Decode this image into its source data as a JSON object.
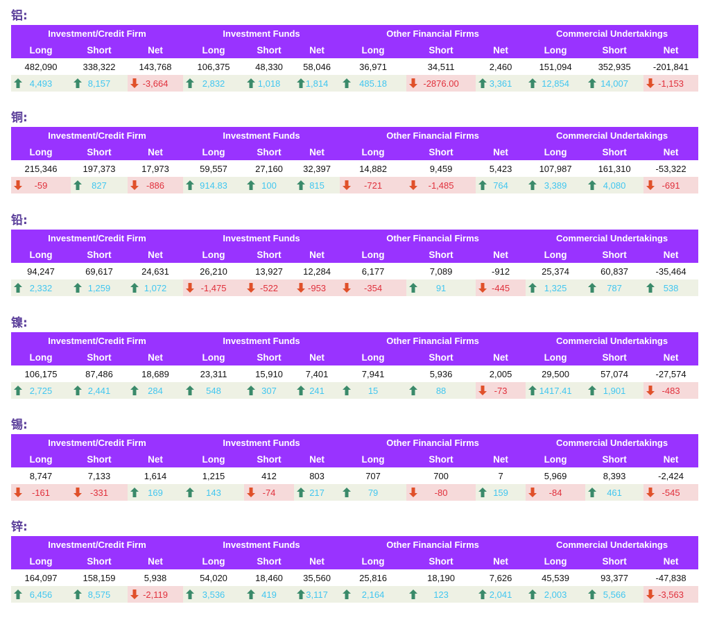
{
  "colors": {
    "header_bg": "#9933ff",
    "title": "#5b3f9a",
    "up_text": "#41c6f0",
    "up_bg": "#eef1e4",
    "down_text": "#e0303c",
    "down_bg": "#f6dada",
    "up_arrow": "#3a8a6a",
    "down_arrow": "#e0502a"
  },
  "icons": {
    "up": "up-arrow-icon",
    "down": "down-arrow-icon"
  },
  "groups": [
    "Investment/Credit Firm",
    "Investment Funds",
    "Other Financial Firms",
    "Commercial Undertakings"
  ],
  "subheaders": [
    "Long",
    "Short",
    "Net",
    "Long",
    "Short",
    "Net",
    "Long",
    "Short",
    "Net",
    "Long",
    "Short",
    "Net"
  ],
  "sections": [
    {
      "title": "铝:",
      "values": [
        "482,090",
        "338,322",
        "143,768",
        "106,375",
        "48,330",
        "58,046",
        "36,971",
        "34,511",
        "2,460",
        "151,094",
        "352,935",
        "-201,841"
      ],
      "changes": [
        {
          "text": "4,493",
          "dir": "up"
        },
        {
          "text": "8,157",
          "dir": "up"
        },
        {
          "text": "-3,664",
          "dir": "down"
        },
        {
          "text": "2,832",
          "dir": "up"
        },
        {
          "text": "1,018",
          "dir": "up"
        },
        {
          "text": "1,814",
          "dir": "up"
        },
        {
          "text": "485.18",
          "dir": "up"
        },
        {
          "text": "-2876.00",
          "dir": "down"
        },
        {
          "text": "3,361",
          "dir": "up"
        },
        {
          "text": "12,854",
          "dir": "up"
        },
        {
          "text": "14,007",
          "dir": "up"
        },
        {
          "text": "-1,153",
          "dir": "down"
        }
      ]
    },
    {
      "title": "铜:",
      "values": [
        "215,346",
        "197,373",
        "17,973",
        "59,557",
        "27,160",
        "32,397",
        "14,882",
        "9,459",
        "5,423",
        "107,987",
        "161,310",
        "-53,322"
      ],
      "changes": [
        {
          "text": "-59",
          "dir": "down"
        },
        {
          "text": "827",
          "dir": "up"
        },
        {
          "text": "-886",
          "dir": "down"
        },
        {
          "text": "914.83",
          "dir": "up"
        },
        {
          "text": "100",
          "dir": "up"
        },
        {
          "text": "815",
          "dir": "up"
        },
        {
          "text": "-721",
          "dir": "down"
        },
        {
          "text": "-1,485",
          "dir": "down"
        },
        {
          "text": "764",
          "dir": "up"
        },
        {
          "text": "3,389",
          "dir": "up"
        },
        {
          "text": "4,080",
          "dir": "up"
        },
        {
          "text": "-691",
          "dir": "down"
        }
      ]
    },
    {
      "title": "铅:",
      "values": [
        "94,247",
        "69,617",
        "24,631",
        "26,210",
        "13,927",
        "12,284",
        "6,177",
        "7,089",
        "-912",
        "25,374",
        "60,837",
        "-35,464"
      ],
      "changes": [
        {
          "text": "2,332",
          "dir": "up"
        },
        {
          "text": "1,259",
          "dir": "up"
        },
        {
          "text": "1,072",
          "dir": "up"
        },
        {
          "text": "-1,475",
          "dir": "down"
        },
        {
          "text": "-522",
          "dir": "down"
        },
        {
          "text": "-953",
          "dir": "down"
        },
        {
          "text": "-354",
          "dir": "down"
        },
        {
          "text": "91",
          "dir": "up"
        },
        {
          "text": "-445",
          "dir": "down"
        },
        {
          "text": "1,325",
          "dir": "up"
        },
        {
          "text": "787",
          "dir": "up"
        },
        {
          "text": "538",
          "dir": "up"
        }
      ]
    },
    {
      "title": "镍:",
      "values": [
        "106,175",
        "87,486",
        "18,689",
        "23,311",
        "15,910",
        "7,401",
        "7,941",
        "5,936",
        "2,005",
        "29,500",
        "57,074",
        "-27,574"
      ],
      "changes": [
        {
          "text": "2,725",
          "dir": "up"
        },
        {
          "text": "2,441",
          "dir": "up"
        },
        {
          "text": "284",
          "dir": "up"
        },
        {
          "text": "548",
          "dir": "up"
        },
        {
          "text": "307",
          "dir": "up"
        },
        {
          "text": "241",
          "dir": "up"
        },
        {
          "text": "15",
          "dir": "up"
        },
        {
          "text": "88",
          "dir": "up"
        },
        {
          "text": "-73",
          "dir": "down"
        },
        {
          "text": "1417.41",
          "dir": "up"
        },
        {
          "text": "1,901",
          "dir": "up"
        },
        {
          "text": "-483",
          "dir": "down"
        }
      ]
    },
    {
      "title": "锡:",
      "values": [
        "8,747",
        "7,133",
        "1,614",
        "1,215",
        "412",
        "803",
        "707",
        "700",
        "7",
        "5,969",
        "8,393",
        "-2,424"
      ],
      "changes": [
        {
          "text": "-161",
          "dir": "down"
        },
        {
          "text": "-331",
          "dir": "down"
        },
        {
          "text": "169",
          "dir": "up"
        },
        {
          "text": "143",
          "dir": "up"
        },
        {
          "text": "-74",
          "dir": "down"
        },
        {
          "text": "217",
          "dir": "up"
        },
        {
          "text": "79",
          "dir": "up"
        },
        {
          "text": "-80",
          "dir": "down"
        },
        {
          "text": "159",
          "dir": "up"
        },
        {
          "text": "-84",
          "dir": "down"
        },
        {
          "text": "461",
          "dir": "up"
        },
        {
          "text": "-545",
          "dir": "down"
        }
      ]
    },
    {
      "title": "锌:",
      "values": [
        "164,097",
        "158,159",
        "5,938",
        "54,020",
        "18,460",
        "35,560",
        "25,816",
        "18,190",
        "7,626",
        "45,539",
        "93,377",
        "-47,838"
      ],
      "changes": [
        {
          "text": "6,456",
          "dir": "up"
        },
        {
          "text": "8,575",
          "dir": "up"
        },
        {
          "text": "-2,119",
          "dir": "down"
        },
        {
          "text": "3,536",
          "dir": "up"
        },
        {
          "text": "419",
          "dir": "up"
        },
        {
          "text": "3,117",
          "dir": "up"
        },
        {
          "text": "2,164",
          "dir": "up"
        },
        {
          "text": "123",
          "dir": "up"
        },
        {
          "text": "2,041",
          "dir": "up"
        },
        {
          "text": "2,003",
          "dir": "up"
        },
        {
          "text": "5,566",
          "dir": "up"
        },
        {
          "text": "-3,563",
          "dir": "down"
        }
      ]
    }
  ]
}
